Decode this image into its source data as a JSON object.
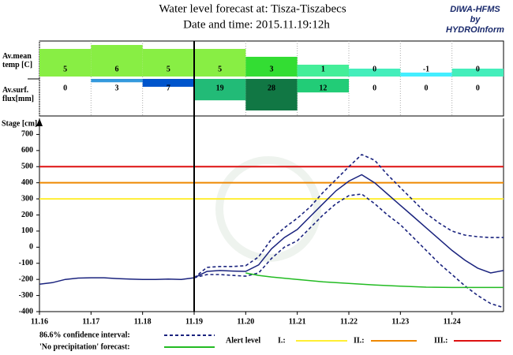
{
  "title": "Water level forecast at: Tisza-Tiszabecs",
  "subtitle": "Date and time: 2015.11.19:12h",
  "logo": [
    "DIWA-HFMS",
    "by",
    "HYDROInform"
  ],
  "chart_data": [
    {
      "type": "bar",
      "series": [
        {
          "name": "Av.mean temp [C]",
          "values": [
            5,
            6,
            5,
            5,
            3,
            1,
            0,
            -1,
            0
          ],
          "colors": [
            "#88ee44",
            "#88ee44",
            "#88ee44",
            "#88ee44",
            "#33dd33",
            "#44ee99",
            "#44eebb",
            "#44eeff",
            "#44eebb"
          ]
        },
        {
          "name": "Av.surf. flux[mm]",
          "values": [
            0,
            3,
            7,
            19,
            28,
            12,
            0,
            0,
            0
          ],
          "colors": [
            "#3399dd",
            "#3399dd",
            "#0055cc",
            "#22bb77",
            "#117744",
            "#22cc77",
            "#22cc77",
            "#22cc77",
            "#22cc77"
          ]
        }
      ]
    },
    {
      "type": "line",
      "ylabel": "Stage [cm]",
      "xlim": [
        16,
        25
      ],
      "ylim": [
        -400,
        800
      ],
      "xticks": [
        {
          "value": 16,
          "label": "11.16"
        },
        {
          "value": 17,
          "label": "11.17"
        },
        {
          "value": 18,
          "label": "11.18"
        },
        {
          "value": 19,
          "label": "11.19"
        },
        {
          "value": 20,
          "label": "11.20"
        },
        {
          "value": 21,
          "label": "11.21"
        },
        {
          "value": 22,
          "label": "11.22"
        },
        {
          "value": 23,
          "label": "11.23"
        },
        {
          "value": 24,
          "label": "11.24"
        }
      ],
      "yticks": [
        -400,
        -300,
        -200,
        -100,
        0,
        100,
        200,
        300,
        400,
        500,
        600,
        700
      ],
      "forecast_start": 19,
      "series": [
        {
          "color": "#1a237e",
          "x": [
            16,
            16.25,
            16.5,
            16.75,
            17,
            17.25,
            17.5,
            17.75,
            18,
            18.25,
            18.5,
            18.75,
            19,
            19.25,
            19.5,
            19.75,
            20,
            20.25,
            20.5,
            20.75,
            21,
            21.25,
            21.5,
            21.75,
            22,
            22.25,
            22.5,
            22.75,
            23,
            23.25,
            23.5,
            23.75,
            24,
            24.25,
            24.5,
            24.75,
            25
          ],
          "values": [
            -230,
            -220,
            -200,
            -192,
            -190,
            -190,
            -195,
            -198,
            -200,
            -200,
            -198,
            -200,
            -190,
            -150,
            -145,
            -148,
            -150,
            -110,
            -10,
            60,
            110,
            190,
            270,
            350,
            410,
            450,
            400,
            330,
            260,
            190,
            120,
            50,
            -20,
            -80,
            -130,
            -160,
            -145
          ]
        },
        {
          "name": "86.6% confidence interval:",
          "color": "#1a237e",
          "dashed": true,
          "x": [
            19,
            19.25,
            19.5,
            19.75,
            20,
            20.25,
            20.5,
            20.75,
            21,
            21.25,
            21.5,
            21.75,
            22,
            22.25,
            22.5,
            22.75,
            23,
            23.25,
            23.5,
            23.75,
            24,
            24.25,
            24.5,
            24.75,
            25
          ],
          "values": [
            -190,
            -125,
            -120,
            -120,
            -115,
            -60,
            50,
            120,
            180,
            250,
            340,
            420,
            500,
            575,
            540,
            450,
            370,
            290,
            210,
            150,
            100,
            75,
            65,
            60,
            60
          ]
        },
        {
          "color": "#1a237e",
          "dashed": true,
          "x": [
            19,
            19.25,
            19.5,
            19.75,
            20,
            20.25,
            20.5,
            20.75,
            21,
            21.25,
            21.5,
            21.75,
            22,
            22.25,
            22.5,
            22.75,
            23,
            23.25,
            23.5,
            23.75,
            24,
            24.25,
            24.5,
            24.75,
            25
          ],
          "values": [
            -190,
            -170,
            -170,
            -175,
            -180,
            -160,
            -70,
            0,
            40,
            120,
            200,
            270,
            320,
            330,
            270,
            200,
            140,
            60,
            -20,
            -100,
            -170,
            -240,
            -300,
            -350,
            -375
          ]
        },
        {
          "name": "'No precipitation' forecast:",
          "color": "#22bb22",
          "x": [
            20,
            20.25,
            20.5,
            21,
            21.5,
            22,
            22.5,
            23,
            23.5,
            24,
            24.5,
            25
          ],
          "values": [
            -160,
            -175,
            -185,
            -200,
            -215,
            -225,
            -235,
            -242,
            -248,
            -250,
            -250,
            -250
          ]
        }
      ],
      "alert_label": "Alert level",
      "alert_levels": [
        {
          "name": "I.:",
          "value": 300,
          "color": "#ffee33"
        },
        {
          "name": "II.:",
          "value": 400,
          "color": "#ee8800"
        },
        {
          "name": "III.:",
          "value": 500,
          "color": "#dd1111"
        }
      ]
    }
  ]
}
